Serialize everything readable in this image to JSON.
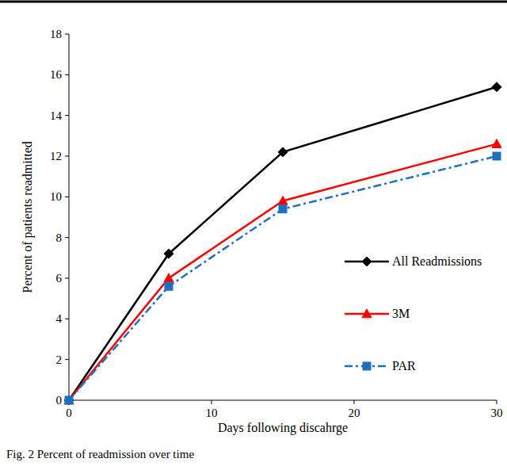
{
  "chart_data": {
    "type": "line",
    "title": "Fig. 2  Percent of readmission over time",
    "x_label": "Days following discahrge",
    "y_label": "Percent of patients readmitted",
    "x": [
      0,
      7,
      15,
      30
    ],
    "series": [
      {
        "name": "All Readmissions",
        "color": "#000000",
        "marker": "diamond",
        "line_style": "solid",
        "values": [
          0,
          7.2,
          12.2,
          15.4
        ]
      },
      {
        "name": "3M",
        "color": "#ff0000",
        "marker": "triangle",
        "line_style": "solid",
        "values": [
          0,
          6.0,
          9.8,
          12.6
        ]
      },
      {
        "name": "PAR",
        "color": "#1f6fc0",
        "marker": "square",
        "line_style": "dashdot",
        "values": [
          0,
          5.6,
          9.4,
          12.0
        ]
      }
    ],
    "xlim": [
      0,
      30
    ],
    "xticks": [
      0,
      10,
      20,
      30
    ],
    "ylim": [
      0,
      18
    ],
    "yticks": [
      0,
      2,
      4,
      6,
      8,
      10,
      12,
      14,
      16,
      18
    ],
    "grid": false,
    "legend": "right"
  }
}
